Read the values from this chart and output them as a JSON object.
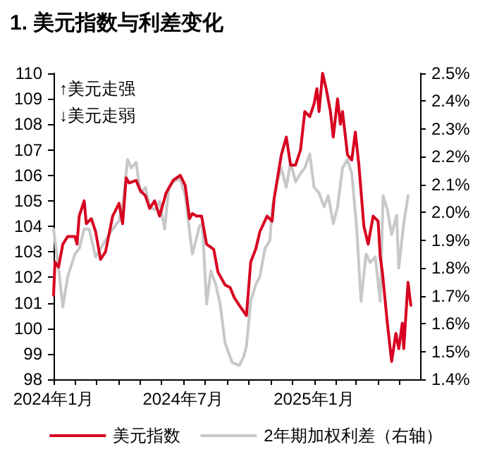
{
  "chart_data": {
    "type": "line",
    "title": "1. 美元指数与利差变化",
    "annotations": [
      "↑美元走强",
      "↓美元走弱"
    ],
    "xlim": [
      "2024-01-01",
      "2025-05-30"
    ],
    "xticks": [
      {
        "value": "2024-01-01",
        "label": "2024年1月"
      },
      {
        "value": "2024-02-01",
        "label": null
      },
      {
        "value": "2024-03-01",
        "label": null
      },
      {
        "value": "2024-04-01",
        "label": null
      },
      {
        "value": "2024-05-01",
        "label": null
      },
      {
        "value": "2024-06-01",
        "label": null
      },
      {
        "value": "2024-07-01",
        "label": "2024年7月"
      },
      {
        "value": "2024-08-01",
        "label": null
      },
      {
        "value": "2024-09-01",
        "label": null
      },
      {
        "value": "2024-10-01",
        "label": null
      },
      {
        "value": "2024-11-01",
        "label": null
      },
      {
        "value": "2024-12-01",
        "label": null
      },
      {
        "value": "2025-01-01",
        "label": "2025年1月"
      },
      {
        "value": "2025-02-01",
        "label": null
      },
      {
        "value": "2025-03-01",
        "label": null
      },
      {
        "value": "2025-04-01",
        "label": null
      },
      {
        "value": "2025-05-01",
        "label": null
      }
    ],
    "ylim": [
      98,
      110
    ],
    "yticks": [
      98,
      99,
      100,
      101,
      102,
      103,
      104,
      105,
      106,
      107,
      108,
      109,
      110
    ],
    "y2lim": [
      1.4,
      2.5
    ],
    "y2ticks": [
      {
        "value": 1.4,
        "label": "1.4%"
      },
      {
        "value": 1.5,
        "label": "1.5%"
      },
      {
        "value": 1.6,
        "label": "1.6%"
      },
      {
        "value": 1.7,
        "label": "1.7%"
      },
      {
        "value": 1.8,
        "label": "1.8%"
      },
      {
        "value": 1.9,
        "label": "1.9%"
      },
      {
        "value": 2.0,
        "label": "2.0%"
      },
      {
        "value": 2.1,
        "label": "2.1%"
      },
      {
        "value": 2.2,
        "label": "2.2%"
      },
      {
        "value": 2.3,
        "label": "2.3%"
      },
      {
        "value": 2.4,
        "label": "2.4%"
      },
      {
        "value": 2.5,
        "label": "2.5%"
      }
    ],
    "grid": false,
    "legend": "bottom",
    "marker": "none",
    "line_style": "solid",
    "series": [
      {
        "name": "美元指数",
        "color": "#d7001f",
        "x": [
          "2024-01-01",
          "2024-01-03",
          "2024-01-08",
          "2024-01-14",
          "2024-01-21",
          "2024-01-31",
          "2024-02-03",
          "2024-02-06",
          "2024-02-13",
          "2024-02-16",
          "2024-02-23",
          "2024-02-29",
          "2024-03-07",
          "2024-03-14",
          "2024-03-24",
          "2024-04-02",
          "2024-04-07",
          "2024-04-12",
          "2024-04-16",
          "2024-04-26",
          "2024-05-02",
          "2024-05-09",
          "2024-05-15",
          "2024-05-22",
          "2024-05-29",
          "2024-06-07",
          "2024-06-17",
          "2024-06-27",
          "2024-07-04",
          "2024-07-10",
          "2024-07-14",
          "2024-07-20",
          "2024-07-27",
          "2024-08-03",
          "2024-08-13",
          "2024-08-19",
          "2024-08-29",
          "2024-09-05",
          "2024-09-11",
          "2024-09-18",
          "2024-09-28",
          "2024-10-04",
          "2024-10-11",
          "2024-10-17",
          "2024-10-27",
          "2024-11-03",
          "2024-11-06",
          "2024-11-16",
          "2024-11-23",
          "2024-11-29",
          "2024-12-06",
          "2024-12-13",
          "2024-12-19",
          "2024-12-26",
          "2025-01-01",
          "2025-01-05",
          "2025-01-08",
          "2025-01-13",
          "2025-01-18",
          "2025-01-24",
          "2025-01-28",
          "2025-02-03",
          "2025-02-07",
          "2025-02-10",
          "2025-02-17",
          "2025-02-23",
          "2025-02-28",
          "2025-03-05",
          "2025-03-12",
          "2025-03-18",
          "2025-03-25",
          "2025-04-01",
          "2025-04-04",
          "2025-04-07",
          "2025-04-14",
          "2025-04-20",
          "2025-04-26",
          "2025-04-30",
          "2025-05-05",
          "2025-05-07",
          "2025-05-13",
          "2025-05-17"
        ],
        "values": [
          101.3,
          102.6,
          102.4,
          103.3,
          103.6,
          103.6,
          103.3,
          104.4,
          105.0,
          104.1,
          104.3,
          103.8,
          102.7,
          103.0,
          104.4,
          104.9,
          104.1,
          105.9,
          105.7,
          105.8,
          105.4,
          105.2,
          104.7,
          105.0,
          104.4,
          105.3,
          105.8,
          106.0,
          105.6,
          104.3,
          104.5,
          104.4,
          104.4,
          103.3,
          103.1,
          102.2,
          101.7,
          101.6,
          101.2,
          100.9,
          100.5,
          102.6,
          103.1,
          103.8,
          104.4,
          104.2,
          105.1,
          106.8,
          107.5,
          106.4,
          106.4,
          107.0,
          108.5,
          108.3,
          108.8,
          109.4,
          108.5,
          110.0,
          109.4,
          108.5,
          107.5,
          109.0,
          108.0,
          108.5,
          106.8,
          106.6,
          107.7,
          106.4,
          104.0,
          103.3,
          104.4,
          104.2,
          102.8,
          102.2,
          100.2,
          98.7,
          99.8,
          99.2,
          100.2,
          99.2,
          101.8,
          100.9
        ]
      },
      {
        "name": "2年期加权利差（右轴）",
        "color": "#c8c8c8",
        "axis": "y2",
        "x": [
          "2024-01-01",
          "2024-01-08",
          "2024-01-14",
          "2024-01-21",
          "2024-01-31",
          "2024-02-06",
          "2024-02-13",
          "2024-02-20",
          "2024-02-29",
          "2024-03-07",
          "2024-03-14",
          "2024-03-24",
          "2024-04-02",
          "2024-04-07",
          "2024-04-14",
          "2024-04-19",
          "2024-04-26",
          "2024-05-02",
          "2024-05-09",
          "2024-05-15",
          "2024-05-22",
          "2024-05-29",
          "2024-06-05",
          "2024-06-11",
          "2024-06-17",
          "2024-06-27",
          "2024-07-04",
          "2024-07-14",
          "2024-07-24",
          "2024-07-28",
          "2024-08-03",
          "2024-08-09",
          "2024-08-16",
          "2024-08-22",
          "2024-08-29",
          "2024-09-08",
          "2024-09-18",
          "2024-09-24",
          "2024-09-28",
          "2024-10-04",
          "2024-10-11",
          "2024-10-17",
          "2024-10-24",
          "2024-10-31",
          "2024-11-03",
          "2024-11-10",
          "2024-11-16",
          "2024-11-23",
          "2024-11-29",
          "2024-12-06",
          "2024-12-13",
          "2024-12-19",
          "2024-12-26",
          "2025-01-01",
          "2025-01-08",
          "2025-01-15",
          "2025-01-21",
          "2025-01-28",
          "2025-02-03",
          "2025-02-10",
          "2025-02-17",
          "2025-02-23",
          "2025-03-02",
          "2025-03-08",
          "2025-03-15",
          "2025-03-21",
          "2025-03-28",
          "2025-04-04",
          "2025-04-08",
          "2025-04-14",
          "2025-04-20",
          "2025-04-27",
          "2025-04-30",
          "2025-05-07",
          "2025-05-13"
        ],
        "values": [
          1.94,
          1.8,
          1.66,
          1.77,
          1.85,
          1.87,
          1.94,
          1.94,
          1.84,
          1.87,
          1.9,
          1.94,
          1.97,
          2.02,
          2.19,
          2.16,
          2.18,
          2.07,
          2.09,
          2.02,
          2.01,
          2.04,
          1.94,
          2.09,
          2.11,
          2.12,
          2.06,
          1.85,
          1.95,
          1.96,
          1.67,
          1.79,
          1.74,
          1.67,
          1.53,
          1.46,
          1.45,
          1.48,
          1.52,
          1.68,
          1.74,
          1.77,
          1.87,
          1.9,
          2.01,
          2.11,
          2.16,
          2.09,
          2.18,
          2.11,
          2.14,
          2.16,
          2.21,
          2.09,
          2.07,
          2.02,
          2.06,
          1.96,
          2.02,
          2.16,
          2.19,
          2.14,
          1.94,
          1.68,
          1.85,
          1.82,
          1.84,
          1.68,
          2.06,
          2.01,
          1.92,
          1.99,
          1.8,
          1.96,
          2.06
        ]
      }
    ]
  }
}
